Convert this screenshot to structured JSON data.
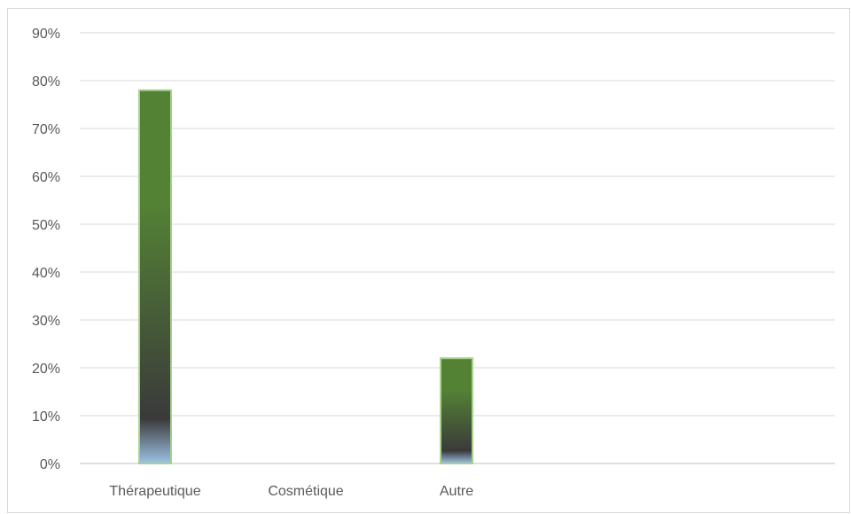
{
  "chart_data": {
    "type": "bar",
    "categories": [
      "Thérapeutique",
      "Cosmétique",
      "Autre"
    ],
    "values": [
      78,
      0,
      22
    ],
    "ylim": [
      0,
      90
    ],
    "ytick_step": 10,
    "ytick_suffix": "%",
    "grid": true,
    "legend": "none",
    "title": "",
    "xlabel": "",
    "ylabel": ""
  },
  "colors": {
    "bar_top": "#548235",
    "bar_mid": "#3a3a3a",
    "bar_bottom": "#9dc3e6",
    "bar_border": "#a9d18e",
    "grid": "#d9d9d9",
    "axis": "#bfbfbf",
    "label": "#595959"
  }
}
